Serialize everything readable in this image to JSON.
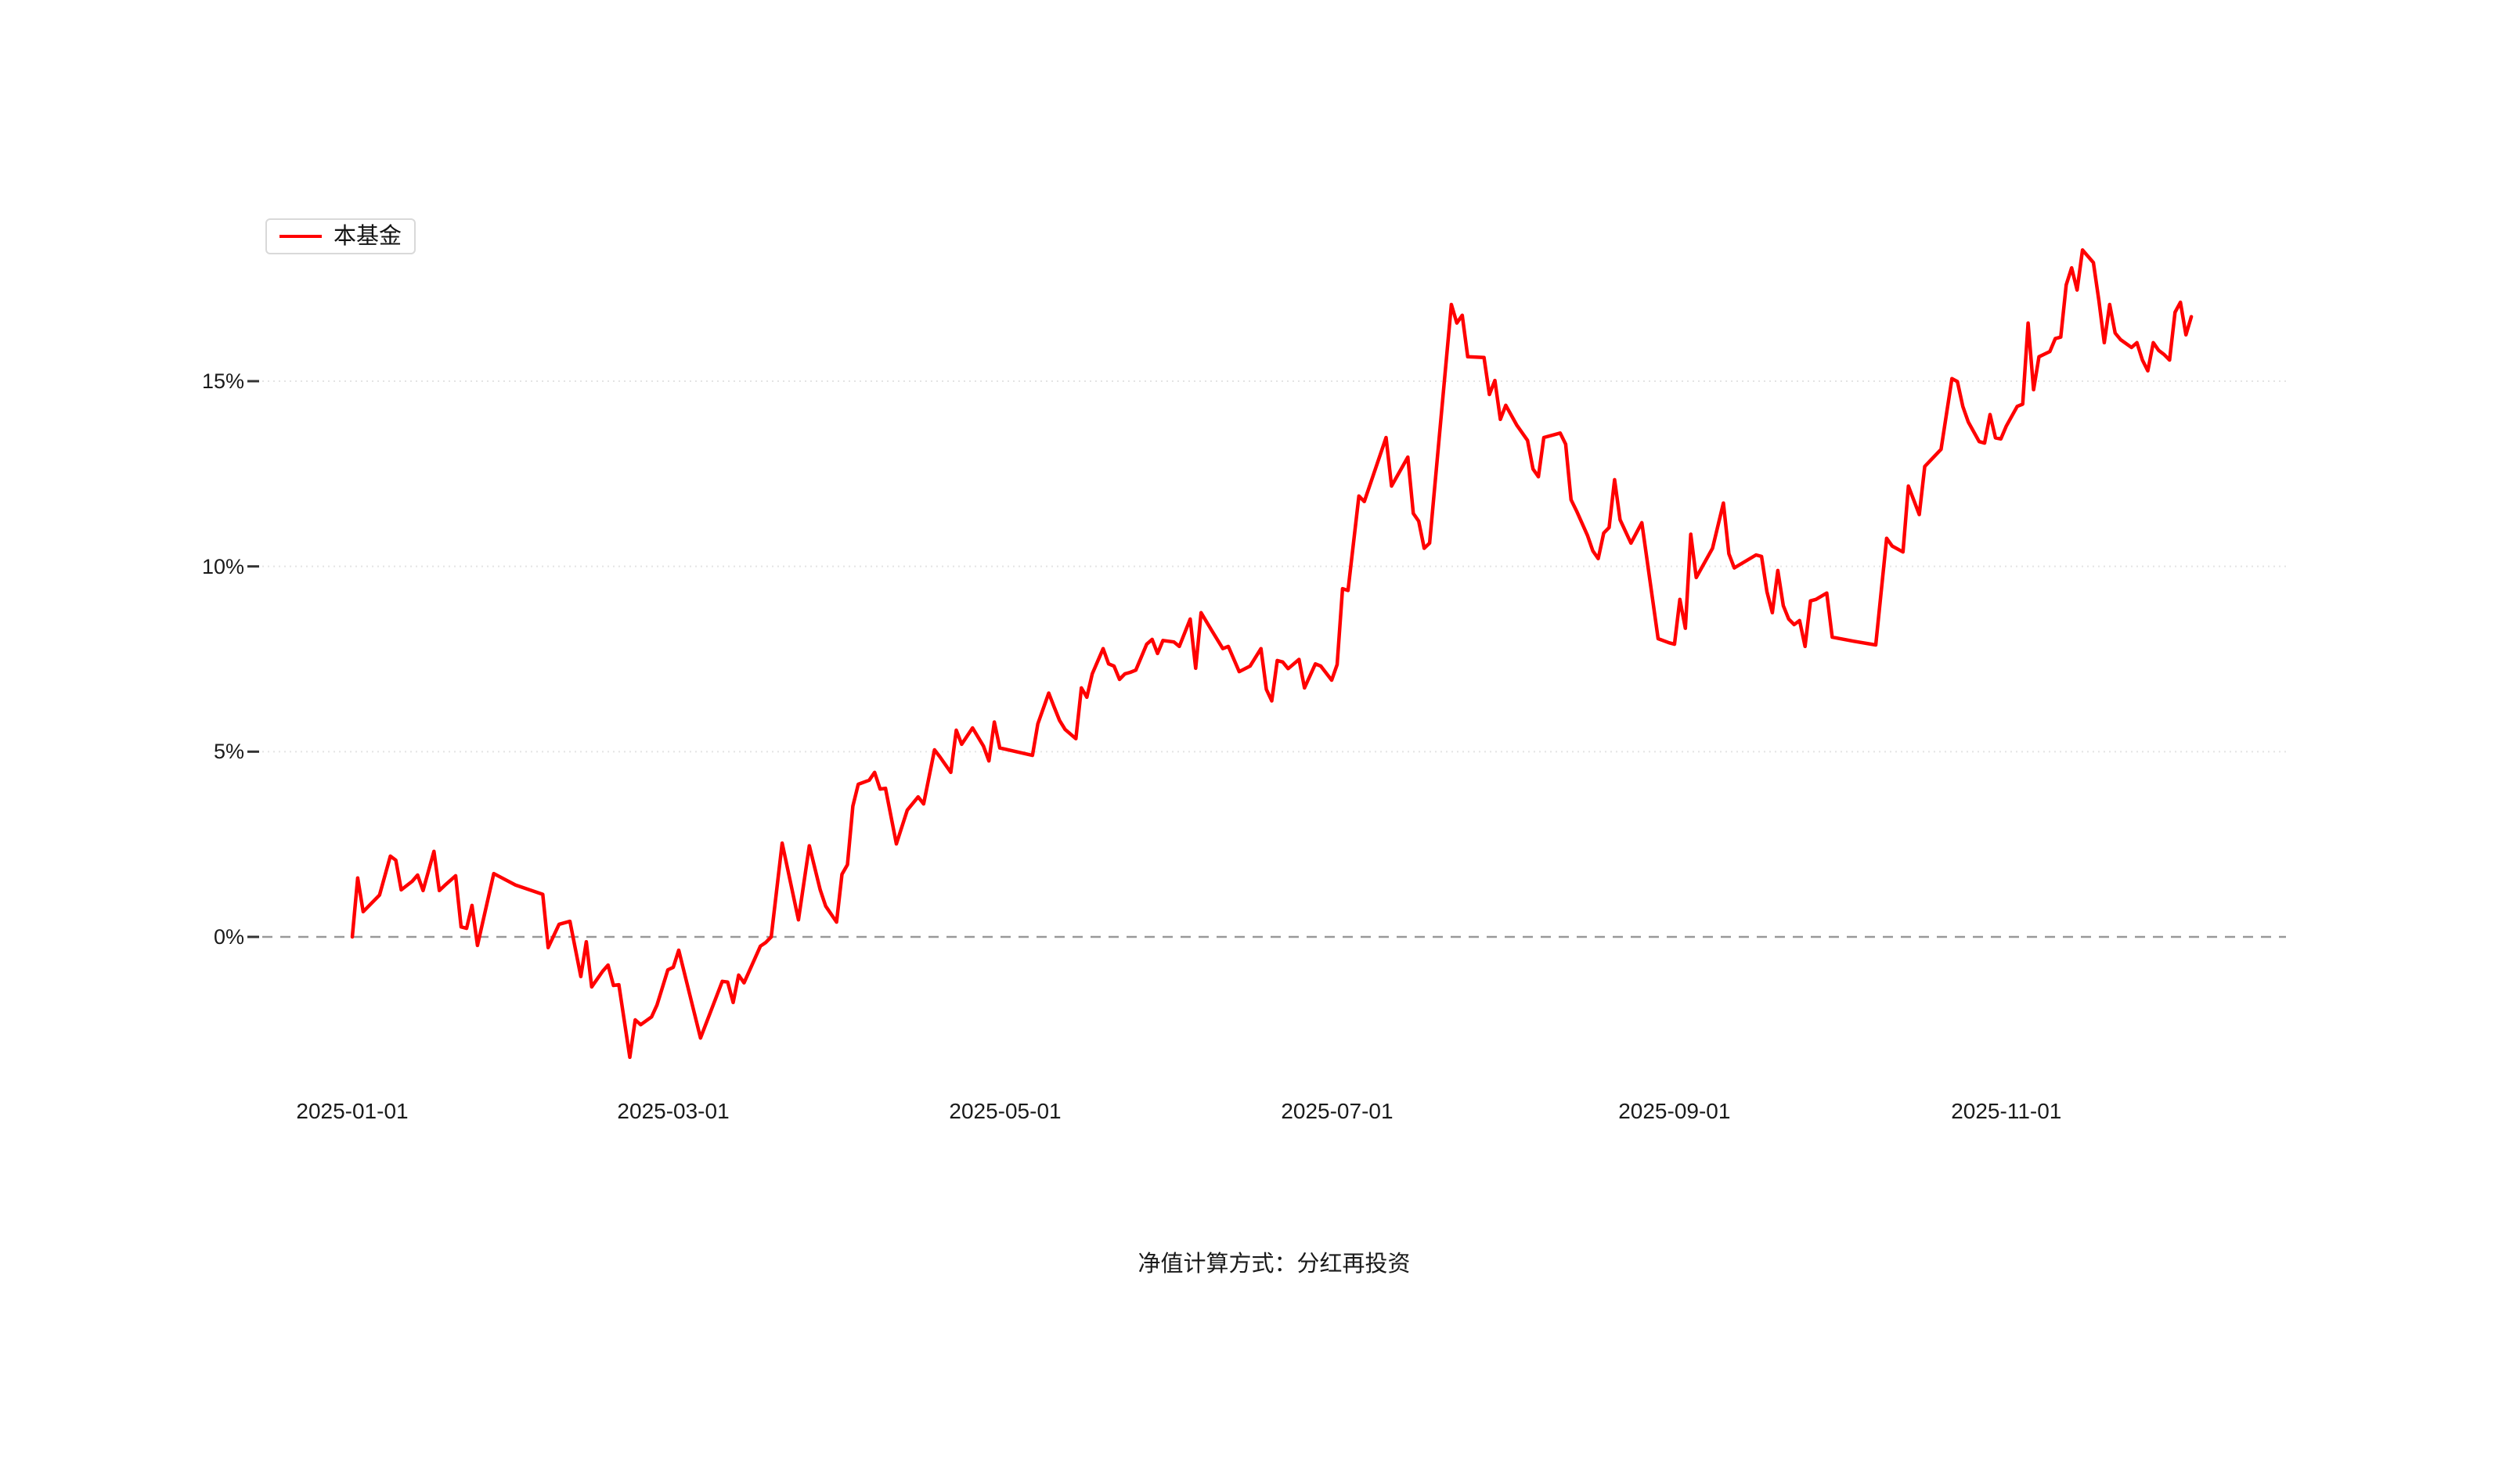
{
  "page": {
    "background": "#ffffff"
  },
  "legend": {
    "items": [
      {
        "label": "本基金",
        "color": "#ff0000"
      }
    ]
  },
  "footer": {
    "caption": "净值计算方式：分红再投资"
  },
  "colors": {
    "line": "#ff0000",
    "zero_line": "#999999",
    "gridline": "#e4e4e4",
    "tick_mark": "#333333",
    "axis_text": "#1a1a1a",
    "legend_border": "#d9d9d9"
  },
  "chart_data": {
    "type": "line",
    "title": "",
    "xlabel": "",
    "ylabel": "",
    "unit": "%",
    "grid": "horizontal",
    "zero_line": "dashed",
    "legend_position": "top-left",
    "ylim": [
      -4.3,
      19.4
    ],
    "x_ticks": [
      "2025-01-01",
      "2025-03-01",
      "2025-05-01",
      "2025-07-01",
      "2025-09-01",
      "2025-11-01"
    ],
    "y_ticks": [
      {
        "value": 0,
        "label": "0%"
      },
      {
        "value": 5,
        "label": "5%"
      },
      {
        "value": 10,
        "label": "10%"
      },
      {
        "value": 15,
        "label": "15%"
      }
    ],
    "series": [
      {
        "name": "本基金",
        "color": "#ff0000",
        "points": [
          [
            "2025-01-01",
            0
          ],
          [
            "2025-01-02",
            1.59
          ],
          [
            "2025-01-03",
            0.68
          ],
          [
            "2025-01-06",
            1.13
          ],
          [
            "2025-01-08",
            2.18
          ],
          [
            "2025-01-09",
            2.07
          ],
          [
            "2025-01-10",
            1.27
          ],
          [
            "2025-01-12",
            1.5
          ],
          [
            "2025-01-13",
            1.67
          ],
          [
            "2025-01-14",
            1.25
          ],
          [
            "2025-01-16",
            2.31
          ],
          [
            "2025-01-17",
            1.25
          ],
          [
            "2025-01-18",
            1.39
          ],
          [
            "2025-01-20",
            1.65
          ],
          [
            "2025-01-21",
            0.27
          ],
          [
            "2025-01-22",
            0.23
          ],
          [
            "2025-01-23",
            0.85
          ],
          [
            "2025-01-24",
            -0.23
          ],
          [
            "2025-01-27",
            1.71
          ],
          [
            "2025-01-31",
            1.4
          ],
          [
            "2025-02-05",
            1.15
          ],
          [
            "2025-02-06",
            -0.29
          ],
          [
            "2025-02-08",
            0.34
          ],
          [
            "2025-02-10",
            0.42
          ],
          [
            "2025-02-12",
            -1.07
          ],
          [
            "2025-02-13",
            -0.13
          ],
          [
            "2025-02-14",
            -1.35
          ],
          [
            "2025-02-16",
            -0.93
          ],
          [
            "2025-02-17",
            -0.76
          ],
          [
            "2025-02-18",
            -1.31
          ],
          [
            "2025-02-19",
            -1.29
          ],
          [
            "2025-02-21",
            -3.25
          ],
          [
            "2025-02-22",
            -2.24
          ],
          [
            "2025-02-23",
            -2.37
          ],
          [
            "2025-02-25",
            -2.16
          ],
          [
            "2025-02-26",
            -1.84
          ],
          [
            "2025-02-28",
            -0.89
          ],
          [
            "2025-03-01",
            -0.82
          ],
          [
            "2025-03-02",
            -0.36
          ],
          [
            "2025-03-06",
            -2.73
          ],
          [
            "2025-03-10",
            -1.2
          ],
          [
            "2025-03-11",
            -1.22
          ],
          [
            "2025-03-12",
            -1.77
          ],
          [
            "2025-03-13",
            -1.03
          ],
          [
            "2025-03-14",
            -1.24
          ],
          [
            "2025-03-17",
            -0.25
          ],
          [
            "2025-03-18",
            -0.15
          ],
          [
            "2025-03-19",
            0
          ],
          [
            "2025-03-21",
            2.53
          ],
          [
            "2025-03-24",
            0.46
          ],
          [
            "2025-03-26",
            2.46
          ],
          [
            "2025-03-28",
            1.27
          ],
          [
            "2025-03-29",
            0.83
          ],
          [
            "2025-03-31",
            0.4
          ],
          [
            "2025-04-01",
            1.69
          ],
          [
            "2025-04-02",
            1.95
          ],
          [
            "2025-04-03",
            3.53
          ],
          [
            "2025-04-04",
            4.12
          ],
          [
            "2025-04-06",
            4.23
          ],
          [
            "2025-04-07",
            4.44
          ],
          [
            "2025-04-08",
            3.99
          ],
          [
            "2025-04-09",
            4.01
          ],
          [
            "2025-04-11",
            2.51
          ],
          [
            "2025-04-13",
            3.42
          ],
          [
            "2025-04-15",
            3.78
          ],
          [
            "2025-04-16",
            3.59
          ],
          [
            "2025-04-18",
            5.05
          ],
          [
            "2025-04-19",
            4.86
          ],
          [
            "2025-04-21",
            4.44
          ],
          [
            "2025-04-22",
            5.58
          ],
          [
            "2025-04-23",
            5.2
          ],
          [
            "2025-04-25",
            5.64
          ],
          [
            "2025-04-27",
            5.15
          ],
          [
            "2025-04-28",
            4.75
          ],
          [
            "2025-04-29",
            5.8
          ],
          [
            "2025-04-30",
            5.1
          ],
          [
            "2025-05-03",
            5.0
          ],
          [
            "2025-05-06",
            4.9
          ],
          [
            "2025-05-07",
            5.75
          ],
          [
            "2025-05-09",
            6.58
          ],
          [
            "2025-05-10",
            6.2
          ],
          [
            "2025-05-11",
            5.84
          ],
          [
            "2025-05-12",
            5.6
          ],
          [
            "2025-05-14",
            5.35
          ],
          [
            "2025-05-15",
            6.72
          ],
          [
            "2025-05-16",
            6.47
          ],
          [
            "2025-05-17",
            7.1
          ],
          [
            "2025-05-19",
            7.78
          ],
          [
            "2025-05-20",
            7.37
          ],
          [
            "2025-05-21",
            7.31
          ],
          [
            "2025-05-22",
            6.95
          ],
          [
            "2025-05-23",
            7.1
          ],
          [
            "2025-05-24",
            7.14
          ],
          [
            "2025-05-25",
            7.2
          ],
          [
            "2025-05-27",
            7.9
          ],
          [
            "2025-05-28",
            8.03
          ],
          [
            "2025-05-29",
            7.65
          ],
          [
            "2025-05-30",
            8.0
          ],
          [
            "2025-06-01",
            7.96
          ],
          [
            "2025-06-02",
            7.84
          ],
          [
            "2025-06-04",
            8.58
          ],
          [
            "2025-06-05",
            7.25
          ],
          [
            "2025-06-06",
            8.75
          ],
          [
            "2025-06-08",
            8.26
          ],
          [
            "2025-06-10",
            7.78
          ],
          [
            "2025-06-11",
            7.84
          ],
          [
            "2025-06-13",
            7.16
          ],
          [
            "2025-06-15",
            7.31
          ],
          [
            "2025-06-17",
            7.78
          ],
          [
            "2025-06-18",
            6.68
          ],
          [
            "2025-06-19",
            6.37
          ],
          [
            "2025-06-20",
            7.46
          ],
          [
            "2025-06-21",
            7.42
          ],
          [
            "2025-06-22",
            7.24
          ],
          [
            "2025-06-24",
            7.49
          ],
          [
            "2025-06-25",
            6.72
          ],
          [
            "2025-06-27",
            7.37
          ],
          [
            "2025-06-28",
            7.31
          ],
          [
            "2025-06-30",
            6.93
          ],
          [
            "2025-07-01",
            7.35
          ],
          [
            "2025-07-02",
            9.4
          ],
          [
            "2025-07-03",
            9.35
          ],
          [
            "2025-07-05",
            11.9
          ],
          [
            "2025-07-06",
            11.75
          ],
          [
            "2025-07-10",
            13.48
          ],
          [
            "2025-07-11",
            12.17
          ],
          [
            "2025-07-14",
            12.95
          ],
          [
            "2025-07-15",
            11.43
          ],
          [
            "2025-07-16",
            11.22
          ],
          [
            "2025-07-17",
            10.49
          ],
          [
            "2025-07-18",
            10.63
          ],
          [
            "2025-07-22",
            17.07
          ],
          [
            "2025-07-23",
            16.57
          ],
          [
            "2025-07-24",
            16.78
          ],
          [
            "2025-07-25",
            15.66
          ],
          [
            "2025-07-28",
            15.64
          ],
          [
            "2025-07-29",
            14.64
          ],
          [
            "2025-07-30",
            15.02
          ],
          [
            "2025-07-31",
            13.97
          ],
          [
            "2025-08-01",
            14.35
          ],
          [
            "2025-08-03",
            13.82
          ],
          [
            "2025-08-05",
            13.4
          ],
          [
            "2025-08-06",
            12.63
          ],
          [
            "2025-08-07",
            12.42
          ],
          [
            "2025-08-08",
            13.48
          ],
          [
            "2025-08-11",
            13.6
          ],
          [
            "2025-08-12",
            13.3
          ],
          [
            "2025-08-13",
            11.8
          ],
          [
            "2025-08-14",
            11.5
          ],
          [
            "2025-08-16",
            10.84
          ],
          [
            "2025-08-17",
            10.42
          ],
          [
            "2025-08-18",
            10.21
          ],
          [
            "2025-08-19",
            10.9
          ],
          [
            "2025-08-20",
            11.05
          ],
          [
            "2025-08-21",
            12.34
          ],
          [
            "2025-08-22",
            11.26
          ],
          [
            "2025-08-24",
            10.63
          ],
          [
            "2025-08-26",
            11.18
          ],
          [
            "2025-08-29",
            8.05
          ],
          [
            "2025-08-31",
            7.94
          ],
          [
            "2025-09-01",
            7.9
          ],
          [
            "2025-09-02",
            9.11
          ],
          [
            "2025-09-03",
            8.33
          ],
          [
            "2025-09-04",
            10.87
          ],
          [
            "2025-09-05",
            9.7
          ],
          [
            "2025-09-08",
            10.49
          ],
          [
            "2025-09-10",
            11.71
          ],
          [
            "2025-09-11",
            10.34
          ],
          [
            "2025-09-12",
            9.96
          ],
          [
            "2025-09-16",
            10.31
          ],
          [
            "2025-09-17",
            10.27
          ],
          [
            "2025-09-18",
            9.32
          ],
          [
            "2025-09-19",
            8.75
          ],
          [
            "2025-09-20",
            9.89
          ],
          [
            "2025-09-21",
            8.94
          ],
          [
            "2025-09-22",
            8.58
          ],
          [
            "2025-09-23",
            8.43
          ],
          [
            "2025-09-24",
            8.54
          ],
          [
            "2025-09-25",
            7.84
          ],
          [
            "2025-09-26",
            9.07
          ],
          [
            "2025-09-27",
            9.11
          ],
          [
            "2025-09-29",
            9.28
          ],
          [
            "2025-09-30",
            8.09
          ],
          [
            "2025-10-04",
            7.98
          ],
          [
            "2025-10-08",
            7.88
          ],
          [
            "2025-10-10",
            10.76
          ],
          [
            "2025-10-11",
            10.55
          ],
          [
            "2025-10-13",
            10.39
          ],
          [
            "2025-10-14",
            12.17
          ],
          [
            "2025-10-16",
            11.4
          ],
          [
            "2025-10-17",
            12.7
          ],
          [
            "2025-10-20",
            13.16
          ],
          [
            "2025-10-22",
            15.07
          ],
          [
            "2025-10-23",
            14.99
          ],
          [
            "2025-10-24",
            14.32
          ],
          [
            "2025-10-25",
            13.9
          ],
          [
            "2025-10-27",
            13.37
          ],
          [
            "2025-10-28",
            13.33
          ],
          [
            "2025-10-29",
            14.1
          ],
          [
            "2025-10-30",
            13.47
          ],
          [
            "2025-10-31",
            13.44
          ],
          [
            "2025-11-01",
            13.79
          ],
          [
            "2025-11-03",
            14.32
          ],
          [
            "2025-11-04",
            14.38
          ],
          [
            "2025-11-05",
            16.57
          ],
          [
            "2025-11-06",
            14.77
          ],
          [
            "2025-11-07",
            15.66
          ],
          [
            "2025-11-09",
            15.8
          ],
          [
            "2025-11-10",
            16.15
          ],
          [
            "2025-11-11",
            16.19
          ],
          [
            "2025-11-12",
            17.6
          ],
          [
            "2025-11-13",
            18.06
          ],
          [
            "2025-11-14",
            17.46
          ],
          [
            "2025-11-15",
            18.54
          ],
          [
            "2025-11-16",
            18.37
          ],
          [
            "2025-11-17",
            18.2
          ],
          [
            "2025-11-18",
            17.18
          ],
          [
            "2025-11-19",
            16.04
          ],
          [
            "2025-11-20",
            17.07
          ],
          [
            "2025-11-21",
            16.3
          ],
          [
            "2025-11-22",
            16.12
          ],
          [
            "2025-11-24",
            15.91
          ],
          [
            "2025-11-25",
            16.04
          ],
          [
            "2025-11-26",
            15.57
          ],
          [
            "2025-11-27",
            15.28
          ],
          [
            "2025-11-28",
            16.04
          ],
          [
            "2025-11-29",
            15.83
          ],
          [
            "2025-11-30",
            15.72
          ],
          [
            "2025-12-01",
            15.57
          ],
          [
            "2025-12-02",
            16.86
          ],
          [
            "2025-12-03",
            17.13
          ],
          [
            "2025-12-04",
            16.25
          ],
          [
            "2025-12-05",
            16.74
          ]
        ]
      }
    ]
  }
}
